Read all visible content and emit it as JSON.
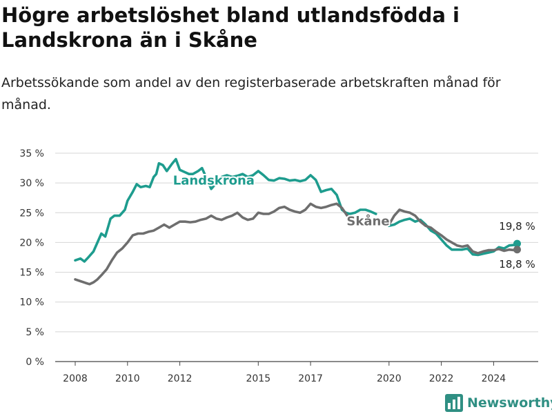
{
  "header": {
    "title": "Högre arbetslöshet bland utlandsfödda i Landskrona än i Skåne",
    "subtitle": "Arbetssökande som andel av den registerbaserade arbetskraften månad för månad."
  },
  "brand": {
    "name": "Newsworthy",
    "icon": "newsworthy-logo-icon"
  },
  "chart_data": {
    "type": "line",
    "title": "Högre arbetslöshet bland utlandsfödda i Landskrona än i Skåne",
    "subtitle": "Arbetssökande som andel av den registerbaserade arbetskraften månad för månad.",
    "xlabel": "",
    "ylabel": "",
    "xlim": [
      2007.5,
      2025.8
    ],
    "ylim": [
      0,
      35
    ],
    "y_ticks": [
      0,
      5,
      10,
      15,
      20,
      25,
      30,
      35
    ],
    "y_tick_labels": [
      "0 %",
      "5 %",
      "10 %",
      "15 %",
      "20 %",
      "25 %",
      "30 %",
      "35 %"
    ],
    "x_ticks": [
      2008,
      2010,
      2012,
      2015,
      2017,
      2020,
      2022,
      2024
    ],
    "x_tick_labels": [
      "2008",
      "2010",
      "2012",
      "2015",
      "2017",
      "2020",
      "2022",
      "2024"
    ],
    "grid": "horizontal",
    "end_labels": [
      {
        "series": "Landskrona",
        "text": "19,8 %"
      },
      {
        "series": "Skåne",
        "text": "18,8 %"
      }
    ],
    "series": [
      {
        "name": "Landskrona",
        "color": "#1e9c8e",
        "x": [
          2008.0,
          2008.2,
          2008.35,
          2008.5,
          2008.7,
          2008.9,
          2009.0,
          2009.15,
          2009.25,
          2009.35,
          2009.5,
          2009.7,
          2009.9,
          2010.0,
          2010.2,
          2010.35,
          2010.5,
          2010.7,
          2010.85,
          2011.0,
          2011.1,
          2011.2,
          2011.35,
          2011.5,
          2011.7,
          2011.85,
          2012.0,
          2012.2,
          2012.35,
          2012.5,
          2012.7,
          2012.85,
          2013.0,
          2013.2,
          2013.4,
          2013.6,
          2013.8,
          2014.0,
          2014.2,
          2014.4,
          2014.6,
          2014.8,
          2015.0,
          2015.2,
          2015.4,
          2015.6,
          2015.8,
          2016.0,
          2016.2,
          2016.4,
          2016.6,
          2016.8,
          2017.0,
          2017.2,
          2017.4,
          2017.6,
          2017.8,
          2018.0,
          2018.2,
          2018.35,
          2018.5,
          2018.7,
          2018.9,
          2019.1,
          2019.3,
          2019.5,
          null,
          2020.0,
          2020.2,
          2020.4,
          2020.6,
          2020.8,
          2021.0,
          2021.2,
          2021.4,
          2021.6,
          2021.8,
          2022.0,
          2022.2,
          2022.4,
          2022.6,
          2022.8,
          2023.0,
          2023.2,
          2023.4,
          2023.6,
          2023.8,
          2024.0,
          2024.2,
          2024.4,
          2024.6,
          2024.8,
          2024.9
        ],
        "values": [
          17.0,
          17.3,
          16.8,
          17.5,
          18.5,
          20.5,
          21.5,
          21.0,
          22.5,
          24.0,
          24.5,
          24.5,
          25.5,
          27.0,
          28.5,
          29.8,
          29.3,
          29.5,
          29.3,
          31.0,
          31.5,
          33.3,
          33.0,
          32.0,
          33.2,
          34.0,
          32.2,
          31.8,
          31.5,
          31.5,
          32.0,
          32.5,
          31.0,
          29.0,
          30.0,
          31.0,
          31.3,
          31.0,
          31.2,
          31.5,
          31.0,
          31.3,
          32.0,
          31.3,
          30.5,
          30.4,
          30.8,
          30.7,
          30.4,
          30.5,
          30.3,
          30.5,
          31.3,
          30.5,
          28.5,
          28.8,
          29.0,
          28.0,
          25.5,
          25.0,
          24.8,
          25.0,
          25.5,
          25.5,
          25.2,
          24.8,
          null,
          22.8,
          23.0,
          23.5,
          23.8,
          24.0,
          23.5,
          23.8,
          23.0,
          22.0,
          21.5,
          20.5,
          19.5,
          18.8,
          18.8,
          18.8,
          19.0,
          18.0,
          17.9,
          18.1,
          18.3,
          18.5,
          19.2,
          19.0,
          19.5,
          19.6,
          19.8
        ]
      },
      {
        "name": "Skåne",
        "color": "#6e6e6e",
        "x": [
          2008.0,
          2008.2,
          2008.4,
          2008.55,
          2008.7,
          2008.85,
          2009.0,
          2009.2,
          2009.4,
          2009.6,
          2009.8,
          2010.0,
          2010.2,
          2010.4,
          2010.6,
          2010.8,
          2011.0,
          2011.2,
          2011.4,
          2011.6,
          2011.8,
          2012.0,
          2012.2,
          2012.4,
          2012.6,
          2012.8,
          2013.0,
          2013.2,
          2013.4,
          2013.6,
          2013.8,
          2014.0,
          2014.2,
          2014.4,
          2014.6,
          2014.8,
          2015.0,
          2015.2,
          2015.4,
          2015.6,
          2015.8,
          2016.0,
          2016.2,
          2016.4,
          2016.6,
          2016.8,
          2017.0,
          2017.2,
          2017.4,
          2017.6,
          2017.8,
          2018.0,
          2018.2,
          2018.4,
          2018.6,
          null,
          2020.0,
          2020.2,
          2020.4,
          2020.6,
          2020.8,
          2021.0,
          2021.2,
          2021.4,
          2021.6,
          2021.8,
          2022.0,
          2022.2,
          2022.4,
          2022.6,
          2022.8,
          2023.0,
          2023.2,
          2023.4,
          2023.6,
          2023.8,
          2024.0,
          2024.2,
          2024.4,
          2024.6,
          2024.8,
          2024.9
        ],
        "values": [
          13.8,
          13.5,
          13.2,
          13.0,
          13.3,
          13.8,
          14.5,
          15.5,
          17.0,
          18.3,
          19.0,
          20.0,
          21.2,
          21.5,
          21.5,
          21.8,
          22.0,
          22.5,
          23.0,
          22.5,
          23.0,
          23.5,
          23.5,
          23.4,
          23.5,
          23.8,
          24.0,
          24.5,
          24.0,
          23.8,
          24.2,
          24.5,
          25.0,
          24.2,
          23.8,
          24.0,
          25.0,
          24.8,
          24.8,
          25.2,
          25.8,
          26.0,
          25.5,
          25.2,
          25.0,
          25.5,
          26.5,
          26.0,
          25.8,
          26.0,
          26.3,
          26.5,
          25.8,
          24.5,
          24.0,
          null,
          23.0,
          24.5,
          25.5,
          25.2,
          25.0,
          24.5,
          23.5,
          22.8,
          22.5,
          21.8,
          21.2,
          20.5,
          20.0,
          19.5,
          19.3,
          19.5,
          18.5,
          18.2,
          18.5,
          18.7,
          18.7,
          18.9,
          18.6,
          18.8,
          18.7,
          18.8
        ]
      }
    ]
  }
}
